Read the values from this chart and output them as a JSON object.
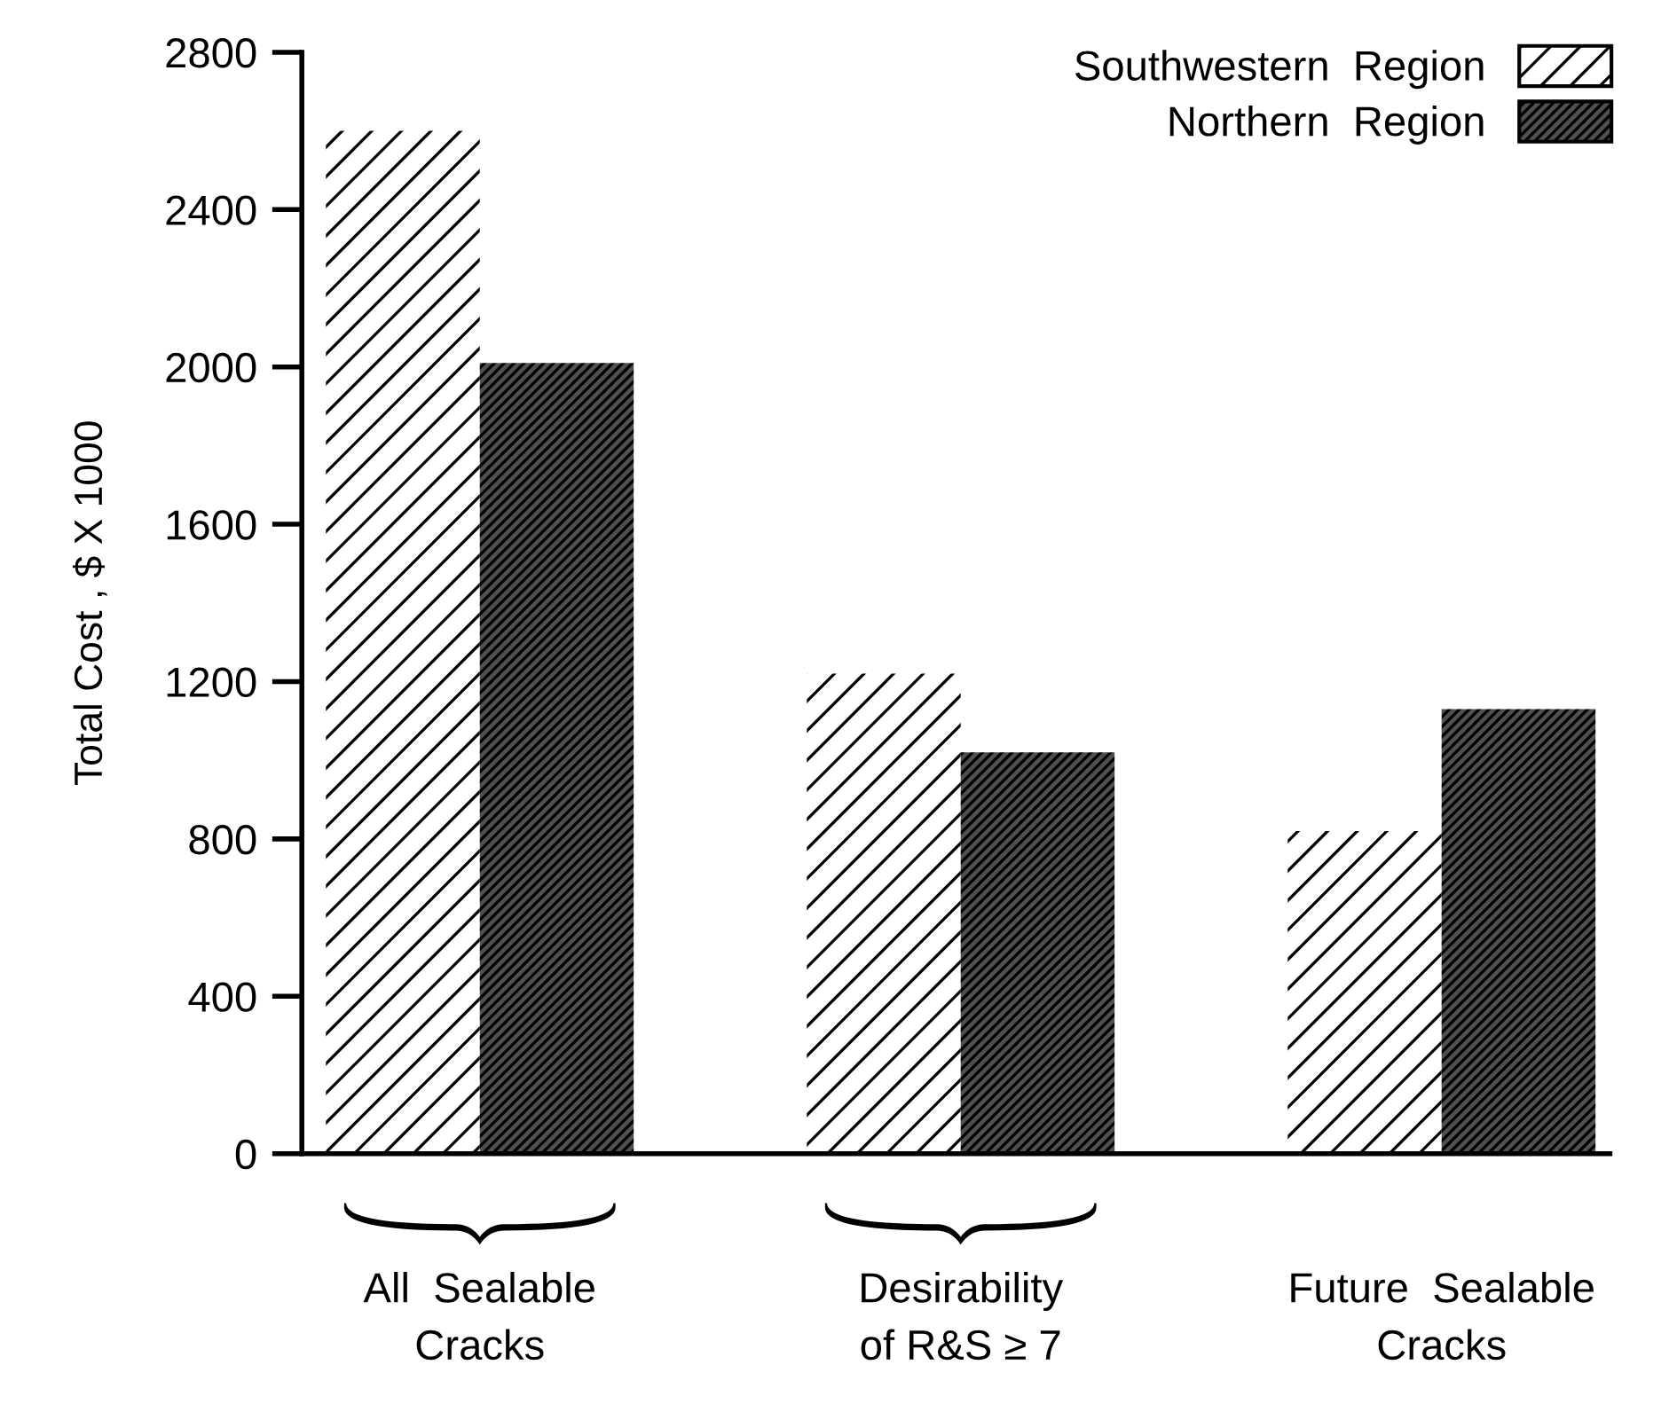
{
  "chart_data": {
    "type": "bar",
    "ylabel": "Total Cost , $ X 1000",
    "categories": [
      "All  Sealable\nCracks",
      "Desirability\nof R&S ≥ 7",
      "Future  Sealable\nCracks"
    ],
    "series": [
      {
        "name": "Southwestern  Region",
        "color": "#ffffff",
        "values": [
          2600,
          1220,
          820
        ]
      },
      {
        "name": "Northern  Region",
        "color": "#505050",
        "values": [
          2010,
          1020,
          1130
        ]
      }
    ],
    "ylim": [
      0,
      2800
    ],
    "yticks": [
      0,
      400,
      800,
      1200,
      1600,
      2000,
      2400,
      2800
    ],
    "grid": false,
    "legend": "top right"
  }
}
